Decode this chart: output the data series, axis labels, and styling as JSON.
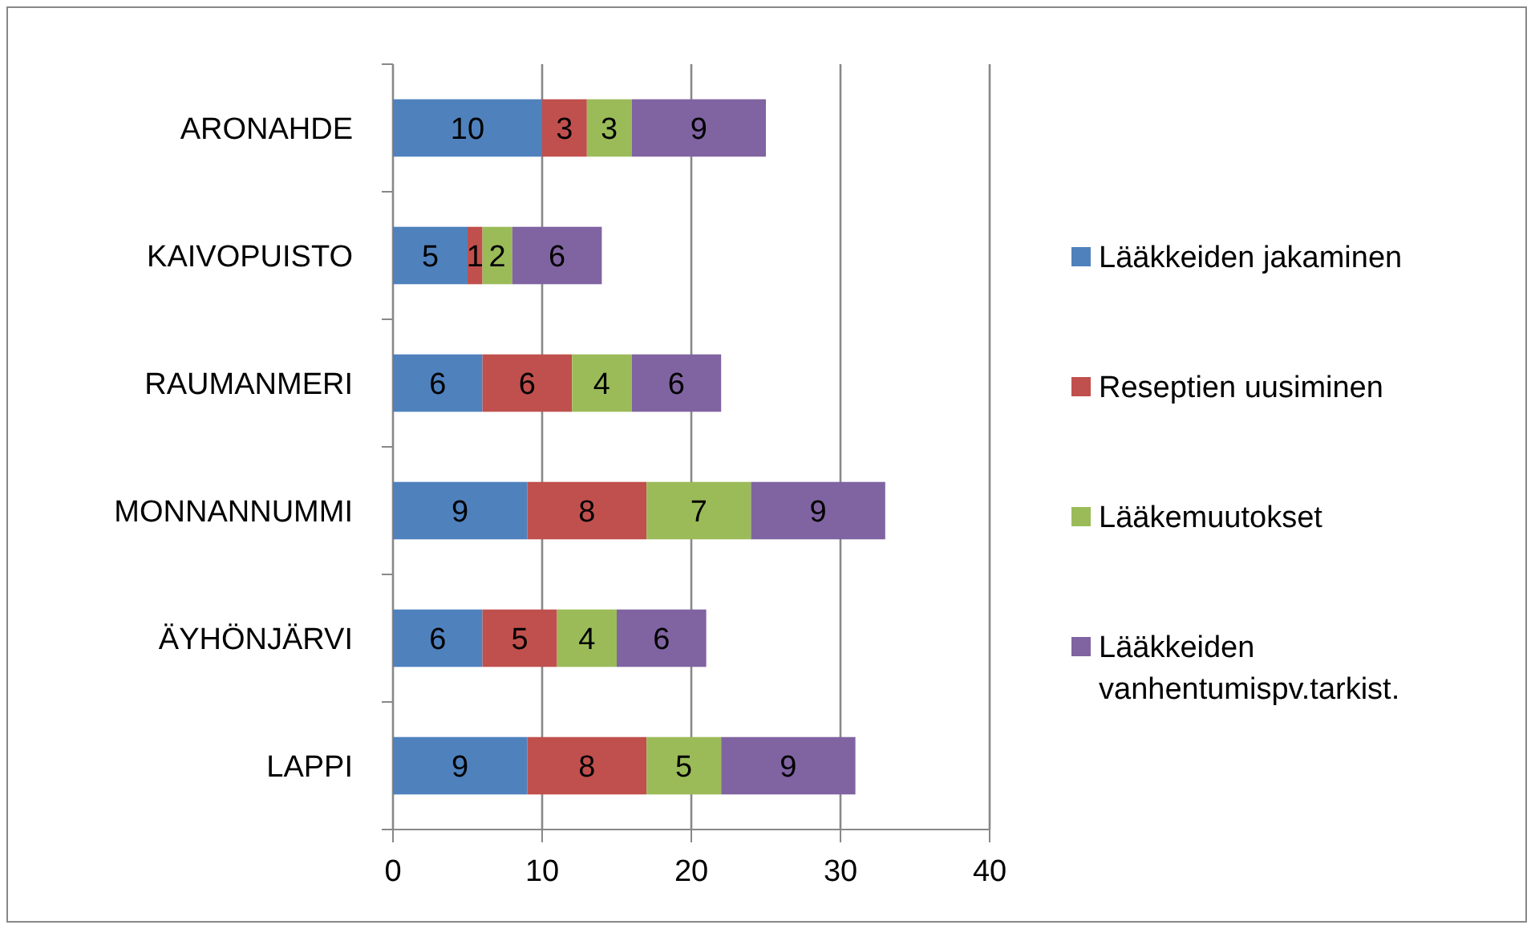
{
  "chart_data": {
    "type": "bar",
    "orientation": "horizontal",
    "stacked": true,
    "categories": [
      "ARONAHDE",
      "KAIVOPUISTO",
      "RAUMANMERI",
      "MONNANNUMMI",
      "ÄYHÖNJÄRVI",
      "LAPPI"
    ],
    "series": [
      {
        "name": "Lääkkeiden jakaminen",
        "color": "#4f81bd",
        "values": [
          10,
          5,
          6,
          9,
          6,
          9
        ]
      },
      {
        "name": "Reseptien uusiminen",
        "color": "#c0504d",
        "values": [
          3,
          1,
          6,
          8,
          5,
          8
        ]
      },
      {
        "name": "Lääkemuutokset",
        "color": "#9bbb59",
        "values": [
          3,
          2,
          4,
          7,
          4,
          5
        ]
      },
      {
        "name": "Lääkkeiden vanhentumispv.tarkist.",
        "color": "#8064a2",
        "values": [
          9,
          6,
          6,
          9,
          6,
          9
        ]
      }
    ],
    "xlim": [
      0,
      40
    ],
    "xticks": [
      0,
      10,
      20,
      30,
      40
    ],
    "grid": "x",
    "legend": "right",
    "data_labels": true
  }
}
